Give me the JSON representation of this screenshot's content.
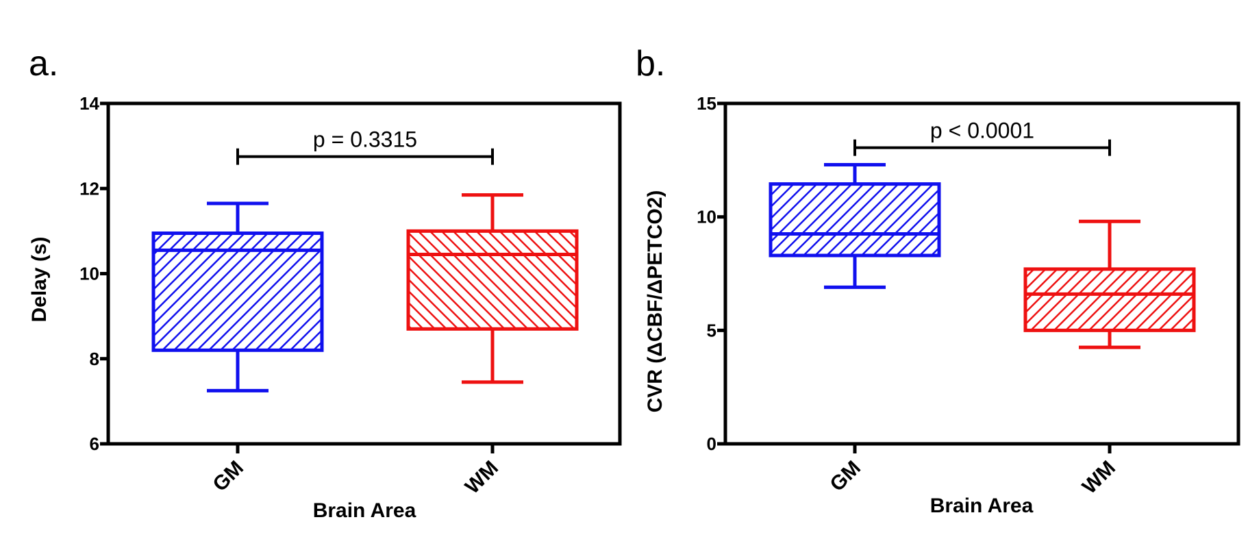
{
  "panels": [
    {
      "label": "a."
    },
    {
      "label": "b."
    }
  ],
  "chart_data": [
    {
      "type": "box",
      "title": "",
      "xlabel": "Brain Area",
      "ylabel": "Delay (s)",
      "ylim": [
        6,
        14
      ],
      "yticks": [
        "6",
        "8",
        "10",
        "12",
        "14"
      ],
      "categories": [
        "GM",
        "WM"
      ],
      "series": [
        {
          "category": "GM",
          "color": "#1010ee",
          "hatch": "forward-diagonal",
          "min": 7.25,
          "q1": 8.2,
          "median": 10.55,
          "q3": 10.95,
          "max": 11.65
        },
        {
          "category": "WM",
          "color": "#ee1111",
          "hatch": "backward-diagonal",
          "min": 7.45,
          "q1": 8.7,
          "median": 10.45,
          "q3": 11.0,
          "max": 11.85
        }
      ],
      "annotation": {
        "text": "p = 0.3315",
        "from": "GM",
        "to": "WM",
        "y": 12.75
      },
      "grid": false,
      "legend": "none"
    },
    {
      "type": "box",
      "title": "",
      "xlabel": "Brain Area",
      "ylabel": "CVR (ΔCBF/ΔPETCO2)",
      "ylim": [
        0,
        15
      ],
      "yticks": [
        "0",
        "5",
        "10",
        "15"
      ],
      "categories": [
        "GM",
        "WM"
      ],
      "series": [
        {
          "category": "GM",
          "color": "#1010ee",
          "hatch": "forward-diagonal",
          "min": 6.9,
          "q1": 8.3,
          "median": 9.25,
          "q3": 11.45,
          "max": 12.3
        },
        {
          "category": "WM",
          "color": "#ee1111",
          "hatch": "forward-diagonal",
          "min": 4.25,
          "q1": 5.0,
          "median": 6.6,
          "q3": 7.7,
          "max": 9.8
        }
      ],
      "annotation": {
        "text": "p < 0.0001",
        "from": "GM",
        "to": "WM",
        "y": 13.05
      },
      "grid": false,
      "legend": "none"
    }
  ]
}
